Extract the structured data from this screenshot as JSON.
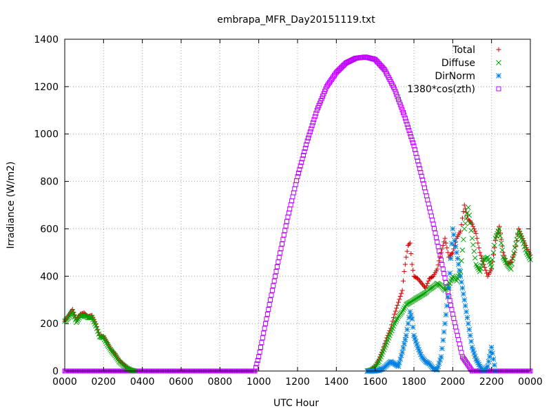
{
  "chart_data": {
    "type": "scatter",
    "title": "embrapa_MFR_Day20151119.txt",
    "xlabel": "UTC Hour",
    "ylabel": "Irradiance (W/m2)",
    "xlim": [
      0,
      24
    ],
    "ylim": [
      0,
      1400
    ],
    "x_ticks": [
      0,
      2,
      4,
      6,
      8,
      10,
      12,
      14,
      16,
      18,
      20,
      22,
      24
    ],
    "x_tick_labels": [
      "0000",
      "0200",
      "0400",
      "0600",
      "0800",
      "1000",
      "1200",
      "1400",
      "1600",
      "1800",
      "2000",
      "2200",
      "0000"
    ],
    "y_ticks": [
      0,
      200,
      400,
      600,
      800,
      1000,
      1200,
      1400
    ],
    "y_tick_labels": [
      "0",
      "200",
      "400",
      "600",
      "800",
      "1000",
      "1200",
      "1400"
    ],
    "grid": true,
    "legend_position": "top-right",
    "series": [
      {
        "name": "Total",
        "marker": "plus",
        "color": "#cc0000",
        "points": [
          [
            0,
            210
          ],
          [
            0.2,
            235
          ],
          [
            0.4,
            260
          ],
          [
            0.6,
            215
          ],
          [
            0.8,
            240
          ],
          [
            1.0,
            245
          ],
          [
            1.2,
            230
          ],
          [
            1.4,
            235
          ],
          [
            1.6,
            200
          ],
          [
            1.8,
            150
          ],
          [
            2.0,
            145
          ],
          [
            2.2,
            120
          ],
          [
            2.4,
            90
          ],
          [
            2.6,
            70
          ],
          [
            2.8,
            45
          ],
          [
            3.0,
            30
          ],
          [
            3.2,
            15
          ],
          [
            3.4,
            5
          ],
          [
            3.6,
            0
          ],
          [
            15.6,
            0
          ],
          [
            15.8,
            5
          ],
          [
            16.0,
            20
          ],
          [
            16.2,
            50
          ],
          [
            16.4,
            90
          ],
          [
            16.6,
            140
          ],
          [
            16.8,
            180
          ],
          [
            17.0,
            240
          ],
          [
            17.2,
            290
          ],
          [
            17.4,
            340
          ],
          [
            17.5,
            420
          ],
          [
            17.6,
            480
          ],
          [
            17.7,
            530
          ],
          [
            17.8,
            540
          ],
          [
            17.9,
            450
          ],
          [
            18.0,
            400
          ],
          [
            18.2,
            390
          ],
          [
            18.4,
            370
          ],
          [
            18.6,
            350
          ],
          [
            18.8,
            390
          ],
          [
            19.0,
            400
          ],
          [
            19.2,
            430
          ],
          [
            19.4,
            500
          ],
          [
            19.6,
            560
          ],
          [
            19.8,
            480
          ],
          [
            20.0,
            500
          ],
          [
            20.1,
            530
          ],
          [
            20.2,
            560
          ],
          [
            20.4,
            590
          ],
          [
            20.6,
            700
          ],
          [
            20.8,
            640
          ],
          [
            21.0,
            620
          ],
          [
            21.2,
            580
          ],
          [
            21.4,
            500
          ],
          [
            21.6,
            450
          ],
          [
            21.8,
            400
          ],
          [
            22.0,
            430
          ],
          [
            22.2,
            550
          ],
          [
            22.4,
            610
          ],
          [
            22.6,
            500
          ],
          [
            22.8,
            450
          ],
          [
            23.0,
            460
          ],
          [
            23.2,
            500
          ],
          [
            23.4,
            600
          ],
          [
            23.6,
            560
          ],
          [
            23.8,
            520
          ],
          [
            24.0,
            490
          ]
        ]
      },
      {
        "name": "Diffuse",
        "marker": "cross",
        "color": "#00a000",
        "points": [
          [
            0,
            210
          ],
          [
            0.2,
            225
          ],
          [
            0.4,
            250
          ],
          [
            0.6,
            205
          ],
          [
            0.8,
            230
          ],
          [
            1.0,
            235
          ],
          [
            1.2,
            225
          ],
          [
            1.4,
            225
          ],
          [
            1.6,
            190
          ],
          [
            1.8,
            145
          ],
          [
            2.0,
            140
          ],
          [
            2.2,
            110
          ],
          [
            2.4,
            85
          ],
          [
            2.6,
            65
          ],
          [
            2.8,
            40
          ],
          [
            3.0,
            25
          ],
          [
            3.2,
            12
          ],
          [
            3.4,
            4
          ],
          [
            3.6,
            0
          ],
          [
            15.6,
            0
          ],
          [
            15.8,
            4
          ],
          [
            16.0,
            15
          ],
          [
            16.2,
            40
          ],
          [
            16.4,
            80
          ],
          [
            16.6,
            120
          ],
          [
            16.8,
            160
          ],
          [
            17.0,
            200
          ],
          [
            17.2,
            230
          ],
          [
            17.4,
            250
          ],
          [
            17.6,
            280
          ],
          [
            17.8,
            290
          ],
          [
            18.0,
            300
          ],
          [
            18.2,
            310
          ],
          [
            18.4,
            320
          ],
          [
            18.6,
            330
          ],
          [
            18.8,
            345
          ],
          [
            19.0,
            355
          ],
          [
            19.2,
            370
          ],
          [
            19.4,
            360
          ],
          [
            19.6,
            340
          ],
          [
            19.8,
            360
          ],
          [
            20.0,
            400
          ],
          [
            20.2,
            380
          ],
          [
            20.4,
            420
          ],
          [
            20.6,
            600
          ],
          [
            20.8,
            690
          ],
          [
            21.0,
            560
          ],
          [
            21.2,
            450
          ],
          [
            21.4,
            420
          ],
          [
            21.6,
            470
          ],
          [
            21.8,
            480
          ],
          [
            22.0,
            440
          ],
          [
            22.2,
            560
          ],
          [
            22.4,
            600
          ],
          [
            22.6,
            480
          ],
          [
            22.8,
            450
          ],
          [
            23.0,
            430
          ],
          [
            23.2,
            520
          ],
          [
            23.4,
            590
          ],
          [
            23.6,
            550
          ],
          [
            23.8,
            500
          ],
          [
            24.0,
            470
          ]
        ]
      },
      {
        "name": "DirNorm",
        "marker": "star",
        "color": "#0080e0",
        "points": [
          [
            15.6,
            0
          ],
          [
            15.8,
            0
          ],
          [
            16.0,
            0
          ],
          [
            16.2,
            3
          ],
          [
            16.4,
            10
          ],
          [
            16.6,
            25
          ],
          [
            16.8,
            40
          ],
          [
            17.0,
            30
          ],
          [
            17.2,
            20
          ],
          [
            17.4,
            80
          ],
          [
            17.6,
            150
          ],
          [
            17.8,
            250
          ],
          [
            17.9,
            220
          ],
          [
            18.0,
            150
          ],
          [
            18.2,
            100
          ],
          [
            18.4,
            60
          ],
          [
            18.6,
            40
          ],
          [
            18.8,
            30
          ],
          [
            19.0,
            10
          ],
          [
            19.2,
            5
          ],
          [
            19.4,
            60
          ],
          [
            19.6,
            200
          ],
          [
            19.8,
            350
          ],
          [
            20.0,
            600
          ],
          [
            20.2,
            500
          ],
          [
            20.4,
            400
          ],
          [
            20.6,
            300
          ],
          [
            20.8,
            200
          ],
          [
            21.0,
            100
          ],
          [
            21.2,
            50
          ],
          [
            21.4,
            20
          ],
          [
            21.6,
            0
          ],
          [
            21.8,
            20
          ],
          [
            22.0,
            100
          ],
          [
            22.2,
            0
          ]
        ]
      },
      {
        "name": "1380*cos(zth)",
        "marker": "square",
        "color": "#c000ff",
        "points": [
          [
            0,
            0
          ],
          [
            1,
            0
          ],
          [
            2,
            0
          ],
          [
            3,
            0
          ],
          [
            4,
            0
          ],
          [
            5,
            0
          ],
          [
            6,
            0
          ],
          [
            7,
            0
          ],
          [
            8,
            0
          ],
          [
            9,
            0
          ],
          [
            9.5,
            0
          ],
          [
            9.8,
            0
          ],
          [
            10,
            60
          ],
          [
            10.5,
            260
          ],
          [
            11,
            460
          ],
          [
            11.5,
            650
          ],
          [
            12,
            820
          ],
          [
            12.5,
            970
          ],
          [
            13,
            1100
          ],
          [
            13.5,
            1200
          ],
          [
            14,
            1260
          ],
          [
            14.5,
            1300
          ],
          [
            15,
            1320
          ],
          [
            15.5,
            1325
          ],
          [
            16,
            1315
          ],
          [
            16.5,
            1270
          ],
          [
            17,
            1190
          ],
          [
            17.5,
            1080
          ],
          [
            18,
            950
          ],
          [
            18.5,
            790
          ],
          [
            19,
            620
          ],
          [
            19.5,
            430
          ],
          [
            20,
            240
          ],
          [
            20.5,
            60
          ],
          [
            21,
            0
          ],
          [
            22,
            0
          ],
          [
            23,
            0
          ],
          [
            24,
            0
          ]
        ]
      }
    ]
  }
}
